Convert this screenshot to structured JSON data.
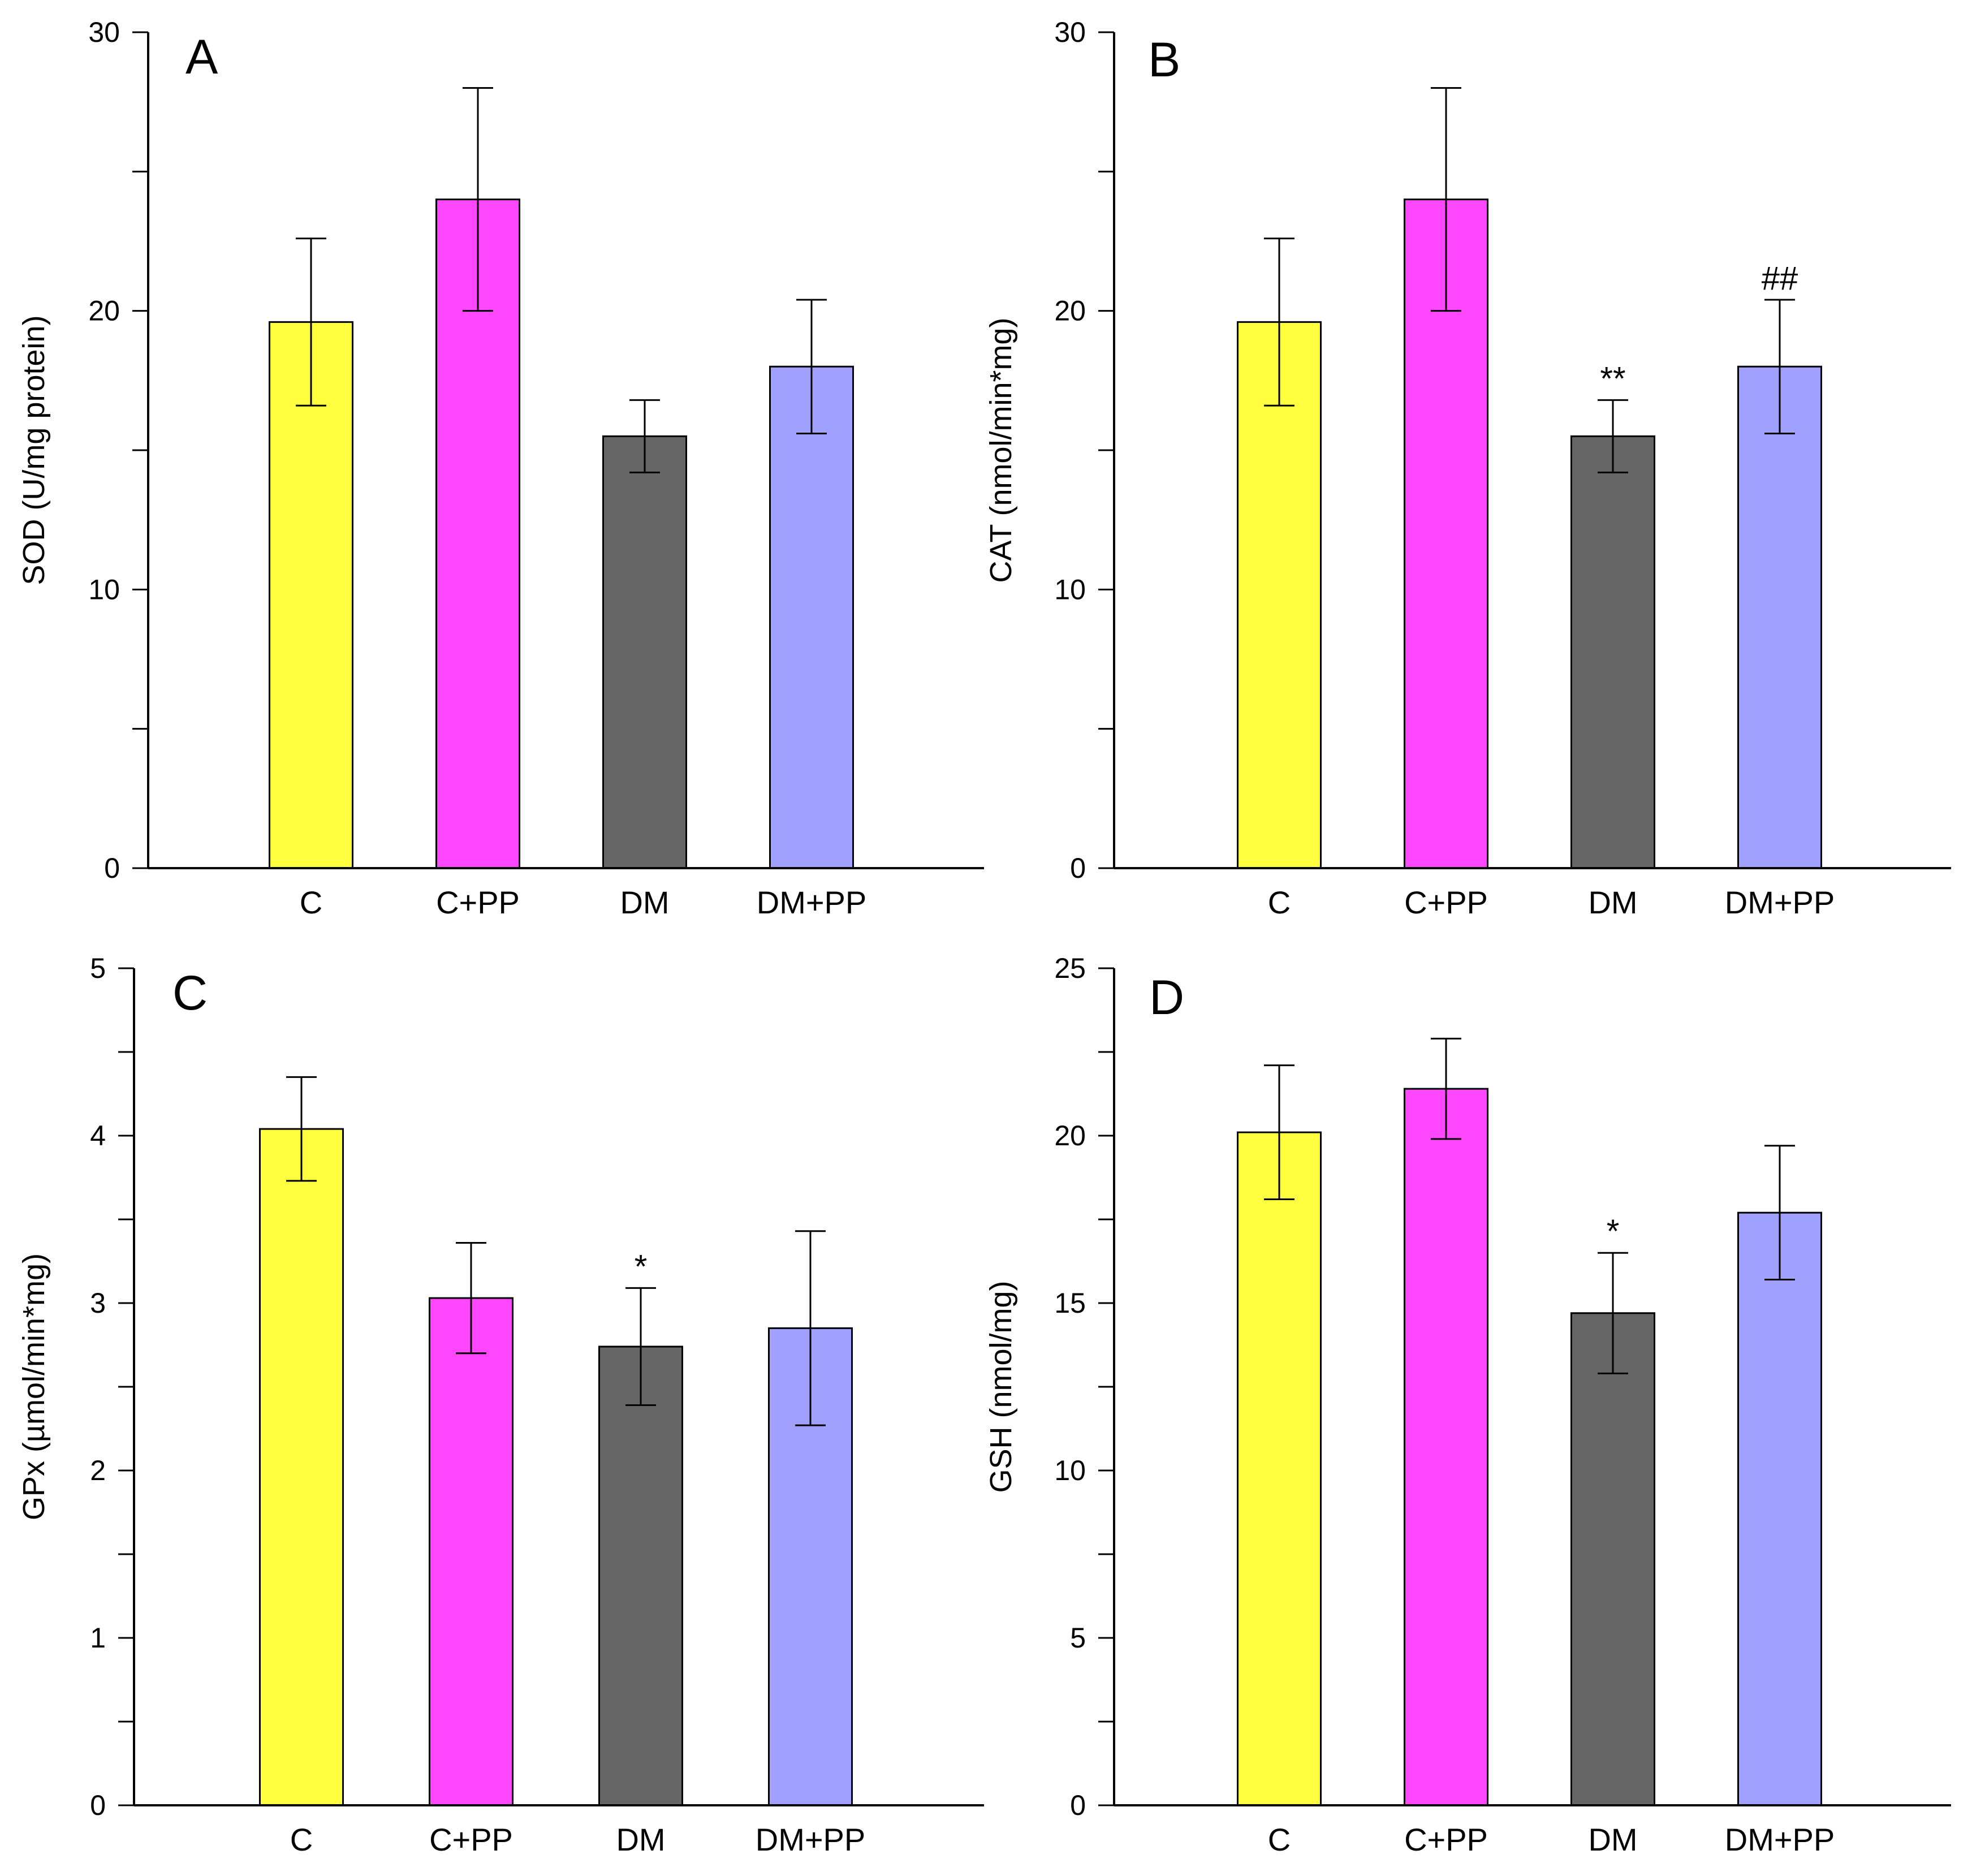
{
  "colors": {
    "C": "#ffff40",
    "C+PP": "#ff47ff",
    "DM": "#666666",
    "DM+PP": "#a0a0ff"
  },
  "chart_data": [
    {
      "type": "bar",
      "panel": "A",
      "categories": [
        "C",
        "C+PP",
        "DM",
        "DM+PP"
      ],
      "values": [
        19.6,
        24.0,
        15.5,
        18.0
      ],
      "errors": [
        3.0,
        4.0,
        1.3,
        2.4
      ],
      "annotations": [
        "",
        "",
        "",
        ""
      ],
      "ylabel": "SOD (U/mg protein)",
      "ylim": [
        0,
        30
      ],
      "major_ticks": [
        0,
        10,
        20,
        30
      ],
      "minor_ticks": [
        5,
        15,
        25
      ]
    },
    {
      "type": "bar",
      "panel": "B",
      "categories": [
        "C",
        "C+PP",
        "DM",
        "DM+PP"
      ],
      "values": [
        19.6,
        24.0,
        15.5,
        18.0
      ],
      "errors": [
        3.0,
        4.0,
        1.3,
        2.4
      ],
      "annotations": [
        "",
        "",
        "**",
        "##"
      ],
      "ylabel": "CAT (nmol/min*mg)",
      "ylim": [
        0,
        30
      ],
      "major_ticks": [
        0,
        10,
        20,
        30
      ],
      "minor_ticks": [
        5,
        15,
        25
      ]
    },
    {
      "type": "bar",
      "panel": "C",
      "categories": [
        "C",
        "C+PP",
        "DM",
        "DM+PP"
      ],
      "values": [
        4.04,
        3.03,
        2.74,
        2.85
      ],
      "errors": [
        0.31,
        0.33,
        0.35,
        0.58
      ],
      "annotations": [
        "",
        "",
        "*",
        ""
      ],
      "ylabel": "GPx (µmol/min*mg)",
      "ylim": [
        0,
        5
      ],
      "major_ticks": [
        0,
        1,
        2,
        3,
        4,
        5
      ],
      "minor_ticks": [
        0.5,
        1.5,
        2.5,
        3.5,
        4.5
      ]
    },
    {
      "type": "bar",
      "panel": "D",
      "categories": [
        "C",
        "C+PP",
        "DM",
        "DM+PP"
      ],
      "values": [
        20.1,
        21.4,
        14.7,
        17.7
      ],
      "errors": [
        2.0,
        1.5,
        1.8,
        2.0
      ],
      "annotations": [
        "",
        "",
        "*",
        ""
      ],
      "ylabel": "GSH (nmol/mg)",
      "ylim": [
        0,
        25
      ],
      "major_ticks": [
        0,
        5,
        10,
        15,
        20,
        25
      ],
      "minor_ticks": [
        2.5,
        7.5,
        12.5,
        17.5,
        22.5
      ]
    }
  ]
}
